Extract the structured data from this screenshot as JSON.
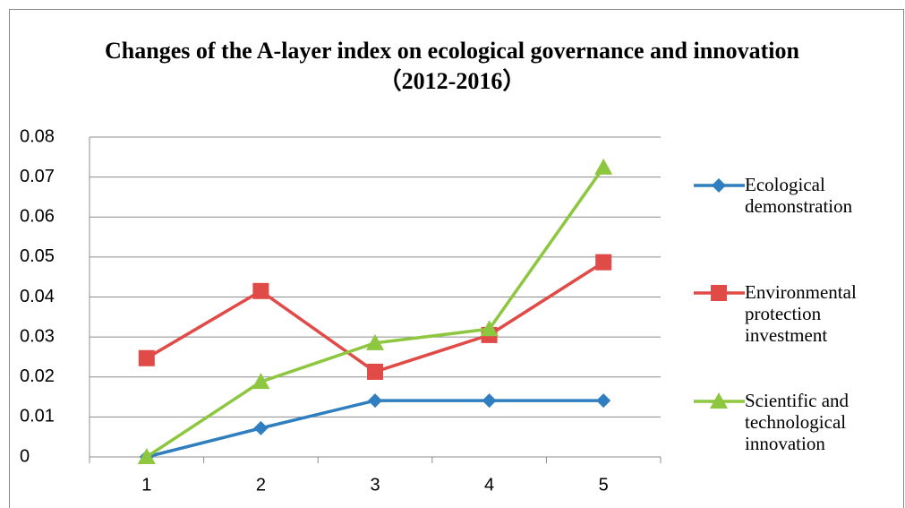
{
  "chart_data": {
    "type": "line",
    "title": "Changes of the A-layer index on ecological governance and innovation （2012-2016）",
    "categories": [
      "1",
      "2",
      "3",
      "4",
      "5"
    ],
    "series": [
      {
        "name": "Ecological demonstration",
        "color": "#2f7ebf",
        "marker": "diamond",
        "values": [
          0,
          0.0072,
          0.0141,
          0.0141,
          0.0141
        ]
      },
      {
        "name": "Environmental protection investment",
        "color": "#e04a47",
        "marker": "square",
        "values": [
          0.0247,
          0.0415,
          0.0213,
          0.0305,
          0.0487
        ]
      },
      {
        "name": "Scientific and technological innovation",
        "color": "#8dc63f",
        "marker": "triangle",
        "values": [
          0,
          0.0188,
          0.0285,
          0.032,
          0.0724
        ]
      }
    ],
    "ylim": [
      0,
      0.08
    ],
    "yticks": [
      0,
      0.01,
      0.02,
      0.03,
      0.04,
      0.05,
      0.06,
      0.07,
      0.08
    ],
    "grid": true,
    "legend": "right"
  }
}
